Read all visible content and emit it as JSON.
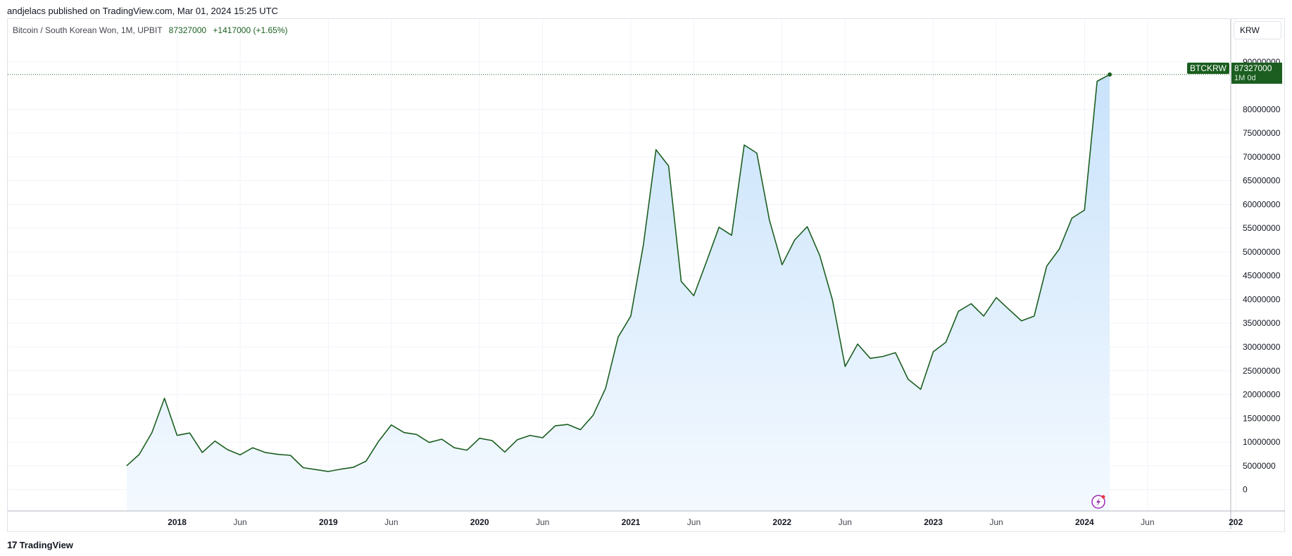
{
  "header": {
    "published": "andjelacs published on TradingView.com, Mar 01, 2024 15:25 UTC"
  },
  "legend": {
    "symbol": "Bitcoin / South Korean Won, 1M, UPBIT",
    "last": "87327000",
    "change": "+1417000 (+1.65%)"
  },
  "currency": "KRW",
  "price_tag": {
    "symbol": "BTCKRW",
    "price": "87327000",
    "countdown": "1M 0d"
  },
  "footer": {
    "logo_mark": "17",
    "logo_text": "TradingView"
  },
  "colors": {
    "line": "#1b5e20",
    "fill_top": "#c9e3fb",
    "fill_bottom": "#f4f9ff",
    "grid": "#f0f3fa"
  },
  "chart_data": {
    "type": "area",
    "title": "Bitcoin / South Korean Won, 1M, UPBIT",
    "xlabel": "",
    "ylabel": "",
    "ylim": [
      -4500000,
      99000000
    ],
    "grid": true,
    "y_ticks": [
      0,
      5000000,
      10000000,
      15000000,
      20000000,
      25000000,
      30000000,
      35000000,
      40000000,
      45000000,
      50000000,
      55000000,
      60000000,
      65000000,
      70000000,
      75000000,
      80000000,
      90000000
    ],
    "x_ticks": [
      {
        "label": "2018",
        "x": "2018-01",
        "bold": true
      },
      {
        "label": "Jun",
        "x": "2018-06",
        "bold": false
      },
      {
        "label": "2019",
        "x": "2019-01",
        "bold": true
      },
      {
        "label": "Jun",
        "x": "2019-06",
        "bold": false
      },
      {
        "label": "2020",
        "x": "2020-01",
        "bold": true
      },
      {
        "label": "Jun",
        "x": "2020-06",
        "bold": false
      },
      {
        "label": "2021",
        "x": "2021-01",
        "bold": true
      },
      {
        "label": "Jun",
        "x": "2021-06",
        "bold": false
      },
      {
        "label": "2022",
        "x": "2022-01",
        "bold": true
      },
      {
        "label": "Jun",
        "x": "2022-06",
        "bold": false
      },
      {
        "label": "2023",
        "x": "2023-01",
        "bold": true
      },
      {
        "label": "Jun",
        "x": "2023-06",
        "bold": false
      },
      {
        "label": "2024",
        "x": "2024-01",
        "bold": true
      },
      {
        "label": "Jun",
        "x": "2024-06",
        "bold": false
      },
      {
        "label": "202",
        "x": "2025-01",
        "bold": true
      }
    ],
    "xlim": [
      "2017-01",
      "2025-01"
    ],
    "series": [
      {
        "symbol": "BTCKRW",
        "x": [
          "2017-09",
          "2017-10",
          "2017-11",
          "2017-12",
          "2018-01",
          "2018-02",
          "2018-03",
          "2018-04",
          "2018-05",
          "2018-06",
          "2018-07",
          "2018-08",
          "2018-09",
          "2018-10",
          "2018-11",
          "2018-12",
          "2019-01",
          "2019-02",
          "2019-03",
          "2019-04",
          "2019-05",
          "2019-06",
          "2019-07",
          "2019-08",
          "2019-09",
          "2019-10",
          "2019-11",
          "2019-12",
          "2020-01",
          "2020-02",
          "2020-03",
          "2020-04",
          "2020-05",
          "2020-06",
          "2020-07",
          "2020-08",
          "2020-09",
          "2020-10",
          "2020-11",
          "2020-12",
          "2021-01",
          "2021-02",
          "2021-03",
          "2021-04",
          "2021-05",
          "2021-06",
          "2021-07",
          "2021-08",
          "2021-09",
          "2021-10",
          "2021-11",
          "2021-12",
          "2022-01",
          "2022-02",
          "2022-03",
          "2022-04",
          "2022-05",
          "2022-06",
          "2022-07",
          "2022-08",
          "2022-09",
          "2022-10",
          "2022-11",
          "2022-12",
          "2023-01",
          "2023-02",
          "2023-03",
          "2023-04",
          "2023-05",
          "2023-06",
          "2023-07",
          "2023-08",
          "2023-09",
          "2023-10",
          "2023-11",
          "2023-12",
          "2024-01",
          "2024-02",
          "2024-03"
        ],
        "values": [
          5000000,
          7400000,
          12000000,
          19200000,
          11400000,
          11900000,
          7800000,
          10200000,
          8400000,
          7300000,
          8800000,
          7800000,
          7400000,
          7200000,
          4600000,
          4200000,
          3800000,
          4300000,
          4700000,
          6000000,
          10200000,
          13600000,
          12000000,
          11600000,
          9900000,
          10600000,
          8800000,
          8300000,
          10800000,
          10300000,
          7900000,
          10500000,
          11400000,
          10900000,
          13400000,
          13700000,
          12600000,
          15600000,
          21300000,
          32100000,
          36500000,
          51500000,
          71500000,
          68100000,
          43800000,
          40800000,
          47900000,
          55200000,
          53500000,
          72500000,
          70800000,
          56700000,
          47300000,
          52500000,
          55300000,
          49200000,
          39900000,
          25900000,
          30600000,
          27600000,
          28000000,
          28800000,
          23200000,
          21100000,
          29000000,
          31000000,
          37500000,
          39100000,
          36500000,
          40400000,
          37900000,
          35500000,
          36500000,
          47000000,
          50600000,
          57100000,
          58800000,
          85900000,
          87327000
        ]
      }
    ]
  }
}
